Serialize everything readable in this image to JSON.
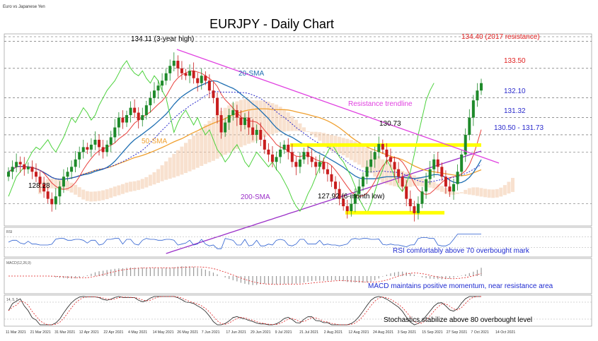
{
  "header": {
    "legend_small": "Euro vs Japanese Yen",
    "title": "EURJPY - Daily Chart"
  },
  "colors": {
    "bull": "#1e8a2a",
    "bear": "#c81e1e",
    "sma20": "#1f6fb2",
    "sma50": "#f0a030",
    "sma200": "#9b30c8",
    "tenkan": "#e8403c",
    "kijun": "#2a2acc",
    "chikou": "#4cd23c",
    "trendline": "#e040e0",
    "zone": "#ffff00",
    "level_red": "#e02020",
    "level_blue": "#2a2acc",
    "text_blue": "#1e2ad0"
  },
  "annotations": {
    "high_label": "134.11 (3-year high)",
    "low_label": "127.92 (6-month low)",
    "left_low_label": "128.28",
    "peak_label": "130.73",
    "trendline_label": "Resistance trendline",
    "sma20_label": "20-SMA",
    "sma50_label": "50-SMA",
    "sma200_label": "200-SMA"
  },
  "levels": [
    {
      "value": 134.4,
      "label": "134.40 (2017 resistance)",
      "color": "#e02020"
    },
    {
      "value": 133.5,
      "label": "133.50",
      "color": "#e02020"
    },
    {
      "value": 132.1,
      "label": "132.10",
      "color": "#2a2acc"
    },
    {
      "value": 131.32,
      "label": "131.32",
      "color": "#2a2acc"
    },
    {
      "value": 130.5,
      "label": "130.50 - 131.73",
      "color": "#2a2acc"
    }
  ],
  "indicators": {
    "rsi_note": "RSI comfortably above 70 overbought mark",
    "macd_note": "MACD maintains positive momentum, near resistance area",
    "stoch_note": "Stochastics stabilize above 80 overbought level",
    "rsi_header": "RSI",
    "macd_header": "MACD(12,26,9)",
    "stoch_header": "14, 5, 5"
  },
  "x_axis": {
    "ticks": [
      "11 Mar 2021",
      "21 Mar 2021",
      "31 Mar 2021",
      "12 Apr 2021",
      "22 Apr 2021",
      "4 May 2021",
      "14 May 2021",
      "26 May 2021",
      "7 Jun 2021",
      "17 Jun 2021",
      "29 Jun 2021",
      "9 Jul 2021",
      "21 Jul 2021",
      "2 Aug 2021",
      "12 Aug 2021",
      "24 Aug 2021",
      "3 Sep 2021",
      "15 Sep 2021",
      "27 Sep 2021",
      "7 Oct 2021",
      "14 Oct 2021"
    ]
  },
  "chart_data": {
    "type": "candlestick",
    "title": "EURJPY - Daily Chart",
    "ylim": [
      127.4,
      135.2
    ],
    "grid": false,
    "closes": [
      129.6,
      129.8,
      130.0,
      129.9,
      129.7,
      129.8,
      129.6,
      129.4,
      129.1,
      128.8,
      128.5,
      128.28,
      128.6,
      129.0,
      129.4,
      129.6,
      129.8,
      130.1,
      130.4,
      130.6,
      130.5,
      130.7,
      130.9,
      130.6,
      130.4,
      130.7,
      131.0,
      131.4,
      131.8,
      131.6,
      131.9,
      132.2,
      132.0,
      131.7,
      131.9,
      132.3,
      132.6,
      132.9,
      133.1,
      133.3,
      133.6,
      133.9,
      134.11,
      133.8,
      133.6,
      133.5,
      133.7,
      133.4,
      133.2,
      133.5,
      133.3,
      132.9,
      132.6,
      131.9,
      131.2,
      131.6,
      131.9,
      132.1,
      131.8,
      131.5,
      131.8,
      131.4,
      131.1,
      131.3,
      130.9,
      130.5,
      130.3,
      130.0,
      130.2,
      130.5,
      130.7,
      130.4,
      130.0,
      129.8,
      130.1,
      130.4,
      130.2,
      130.0,
      129.8,
      130.0,
      129.7,
      129.5,
      129.2,
      128.9,
      128.5,
      128.2,
      128.0,
      128.3,
      128.7,
      129.0,
      129.4,
      129.8,
      130.1,
      130.4,
      130.73,
      130.5,
      130.2,
      130.0,
      129.7,
      129.4,
      129.0,
      128.5,
      128.2,
      127.92,
      128.3,
      128.8,
      129.3,
      129.7,
      130.1,
      129.8,
      129.4,
      129.0,
      128.8,
      129.1,
      129.6,
      130.3,
      131.1,
      131.8,
      132.5,
      132.9,
      133.2
    ],
    "x_range": [
      "11 Mar 2021",
      "14 Oct 2021"
    ]
  }
}
